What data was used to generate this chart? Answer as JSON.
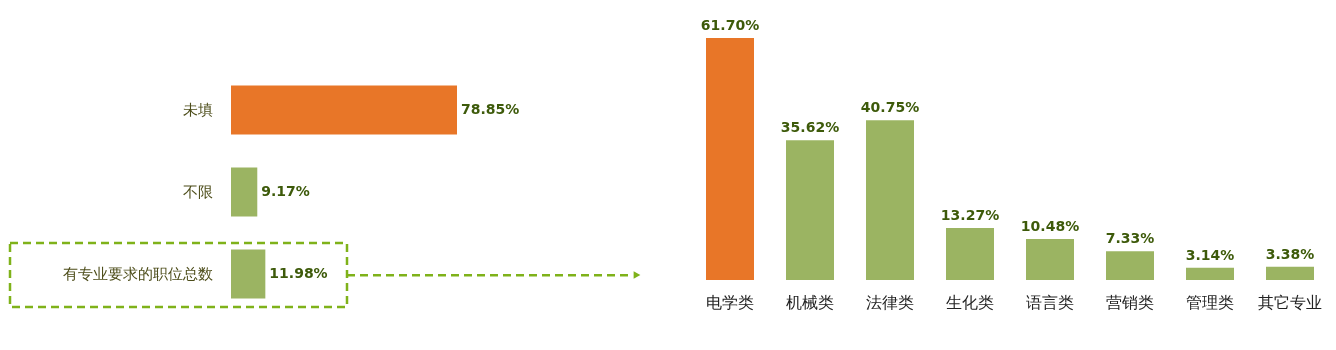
{
  "chart_data": [
    {
      "type": "bar",
      "orientation": "horizontal",
      "categories": [
        "未填",
        "不限",
        "有专业要求的职位总数"
      ],
      "values": [
        78.85,
        9.17,
        11.98
      ],
      "colors": [
        "#e87628",
        "#9bb462",
        "#9bb462"
      ],
      "value_labels": [
        "78.85%",
        "9.17%",
        "11.98%"
      ]
    },
    {
      "type": "bar",
      "categories": [
        "电学类",
        "机械类",
        "法律类",
        "生化类",
        "语言类",
        "营销类",
        "管理类",
        "其它专业"
      ],
      "values": [
        61.7,
        35.62,
        40.75,
        13.27,
        10.48,
        7.33,
        3.14,
        3.38
      ],
      "colors": [
        "#e87628",
        "#9bb462",
        "#9bb462",
        "#9bb462",
        "#9bb462",
        "#9bb462",
        "#9bb462",
        "#9bb462"
      ],
      "value_labels": [
        "61.70%",
        "35.62%",
        "40.75%",
        "13.27%",
        "10.48%",
        "7.33%",
        "3.14%",
        "3.38%"
      ]
    }
  ]
}
